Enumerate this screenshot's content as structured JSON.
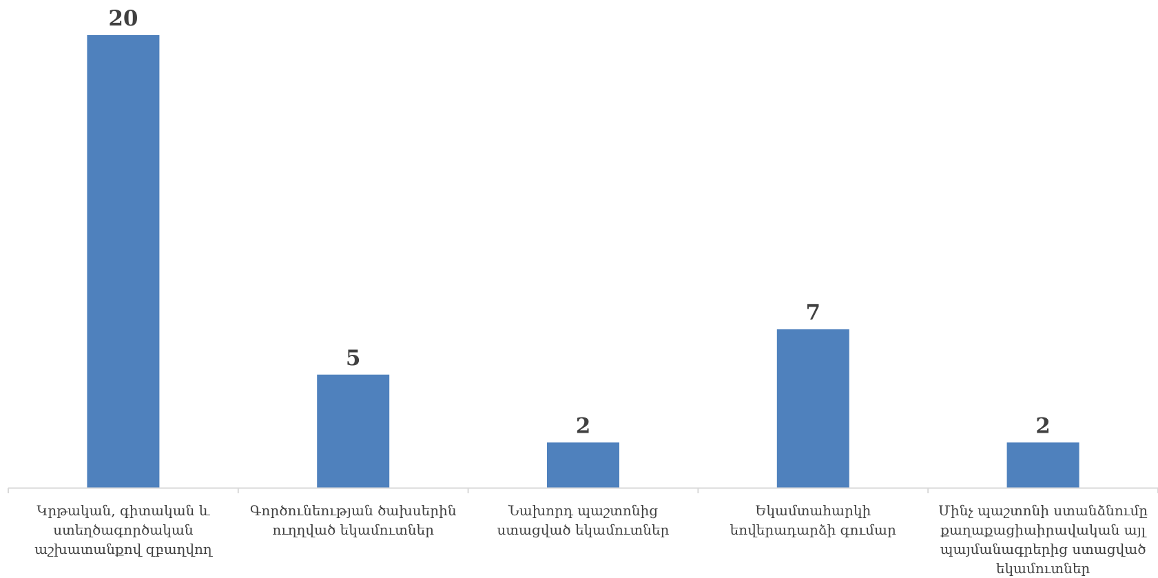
{
  "chart_data": {
    "type": "bar",
    "categories": [
      [
        "Կրթական, գիտական և",
        "ստեղծագործական",
        "աշխատանքով զբաղվող"
      ],
      [
        "Գործունեության ծախսերին",
        "ուղղված եկամուտներ"
      ],
      [
        "Նախորդ պաշտոնից",
        "ստացված եկամուտներ"
      ],
      [
        "Եկամտահարկի",
        "եովերադարձի գումար"
      ],
      [
        "Մինչ պաշտոնի ստանձնումը",
        "քաղաքացիաիրավական այլ",
        "պայմանագրերից ստացված",
        "եկամուտներ"
      ]
    ],
    "values": [
      20,
      5,
      2,
      7,
      2
    ],
    "ylim": [
      0,
      20
    ],
    "title": "",
    "xlabel": "",
    "ylabel": "",
    "grid": false,
    "legend": "none",
    "colors": {
      "bar": "#4F81BD",
      "axis": "#D9D9D9",
      "text": "#404040"
    }
  }
}
